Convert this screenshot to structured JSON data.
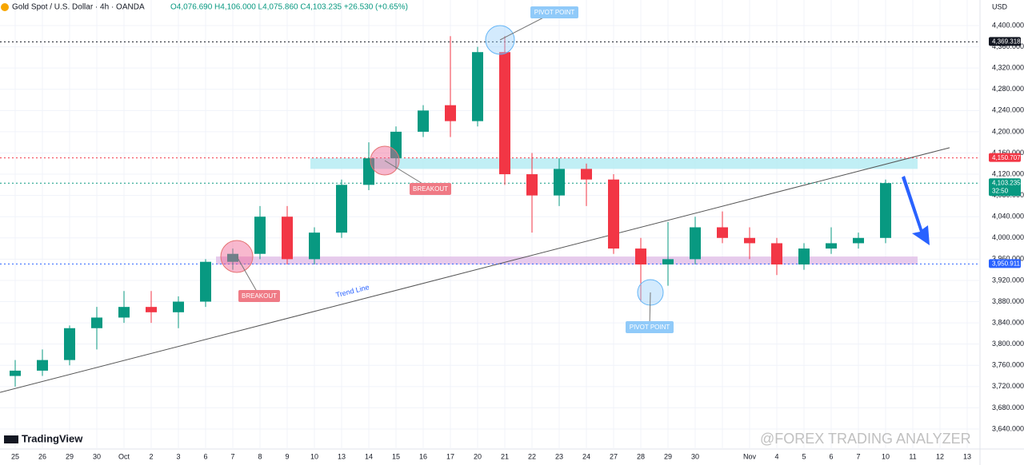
{
  "header": {
    "symbol": "Gold Spot / U.S. Dollar · 4h · OANDA",
    "ohlc": "O4,076.690 H4,106.000 L4,075.860 C4,103.235 +26.530 (+0.65%)",
    "currency": "USD"
  },
  "chart_data": {
    "type": "candlestick",
    "categories": [
      "25",
      "26",
      "29",
      "30",
      "Oct",
      "2",
      "3",
      "6",
      "7",
      "8",
      "9",
      "10",
      "13",
      "14",
      "15",
      "16",
      "17",
      "20",
      "21",
      "22",
      "23",
      "24",
      "27",
      "28",
      "29",
      "30",
      null,
      "Nov",
      "4",
      "5",
      "6",
      "7",
      "10"
    ],
    "future_categories": [
      "11",
      "12",
      "13"
    ],
    "open": [
      3740,
      3750,
      3770,
      3830,
      3850,
      3870,
      3860,
      3880,
      3955,
      3970,
      4040,
      3960,
      4010,
      4100,
      4150,
      4200,
      4250,
      4220,
      4350,
      4120,
      4080,
      4130,
      4110,
      3980,
      3950,
      3960,
      4020,
      4000,
      3990,
      3950,
      3980,
      3990,
      4000
    ],
    "high": [
      3770,
      3790,
      3835,
      3870,
      3900,
      3900,
      3890,
      3960,
      3980,
      4060,
      4060,
      4020,
      4110,
      4180,
      4210,
      4250,
      4380,
      4360,
      4380,
      4160,
      4150,
      4140,
      4120,
      4000,
      4030,
      4040,
      4050,
      4020,
      4000,
      3990,
      4020,
      4010,
      4110
    ],
    "low": [
      3720,
      3740,
      3760,
      3790,
      3840,
      3840,
      3830,
      3870,
      3940,
      3960,
      3950,
      3950,
      4000,
      4090,
      4130,
      4190,
      4190,
      4210,
      4100,
      4010,
      4060,
      4060,
      3970,
      3880,
      3910,
      3950,
      3990,
      3960,
      3930,
      3940,
      3970,
      3980,
      3990
    ],
    "close": [
      3750,
      3770,
      3830,
      3850,
      3870,
      3860,
      3880,
      3955,
      3970,
      4040,
      3960,
      4010,
      4100,
      4150,
      4200,
      4240,
      4220,
      4350,
      4120,
      4080,
      4130,
      4110,
      3980,
      3950,
      3960,
      4020,
      4000,
      3990,
      3950,
      3980,
      3990,
      4000,
      4103.235
    ],
    "up_color": "#089981",
    "down_color": "#f23645",
    "ylim": [
      3620,
      4420
    ],
    "yticks": [
      {
        "value": 3640,
        "label": "3,640.000"
      },
      {
        "value": 3680,
        "label": "3,680.000"
      },
      {
        "value": 3720,
        "label": "3,720.000"
      },
      {
        "value": 3760,
        "label": "3,760.000"
      },
      {
        "value": 3800,
        "label": "3,800.000"
      },
      {
        "value": 3840,
        "label": "3,840.000"
      },
      {
        "value": 3880,
        "label": "3,880.000"
      },
      {
        "value": 3920,
        "label": "3,920.000"
      },
      {
        "value": 3960,
        "label": "3,960.000"
      },
      {
        "value": 4000,
        "label": "4,000.000"
      },
      {
        "value": 4040,
        "label": "4,040.000"
      },
      {
        "value": 4080,
        "label": "4,080.000"
      },
      {
        "value": 4120,
        "label": "4,120.000"
      },
      {
        "value": 4160,
        "label": "4,160.000"
      },
      {
        "value": 4200,
        "label": "4,200.000"
      },
      {
        "value": 4240,
        "label": "4,240.000"
      },
      {
        "value": 4280,
        "label": "4,280.000"
      },
      {
        "value": 4320,
        "label": "4,320.000"
      },
      {
        "value": 4360,
        "label": "4,360.000"
      },
      {
        "value": 4400,
        "label": "4,400.000"
      }
    ],
    "grid": true,
    "price_lines": [
      {
        "value": 4369.318,
        "label": "4,369.318",
        "color": "#131722"
      },
      {
        "value": 4150.707,
        "label": "4,150.707",
        "color": "#f23645"
      },
      {
        "value": 4103.235,
        "label": "4,103.235",
        "color": "#089981",
        "sub": "32:50"
      },
      {
        "value": 3950.911,
        "label": "3,950.911",
        "color": "#2962ff"
      }
    ],
    "zones": [
      {
        "from": 4130,
        "to": 4150,
        "color": "#b2ebf2"
      },
      {
        "from": 3950,
        "to": 3965,
        "color": "#e1bee7"
      }
    ],
    "trend_line": {
      "label": "Trend Line",
      "start": 3709,
      "end": 4170
    },
    "annotations": [
      "PIVOT POINT",
      "BREAKOUT",
      "BREAKOUT",
      "PIVOT POINT"
    ],
    "brand": "TradingView",
    "watermark": "@FOREX TRADING ANALYZER"
  }
}
